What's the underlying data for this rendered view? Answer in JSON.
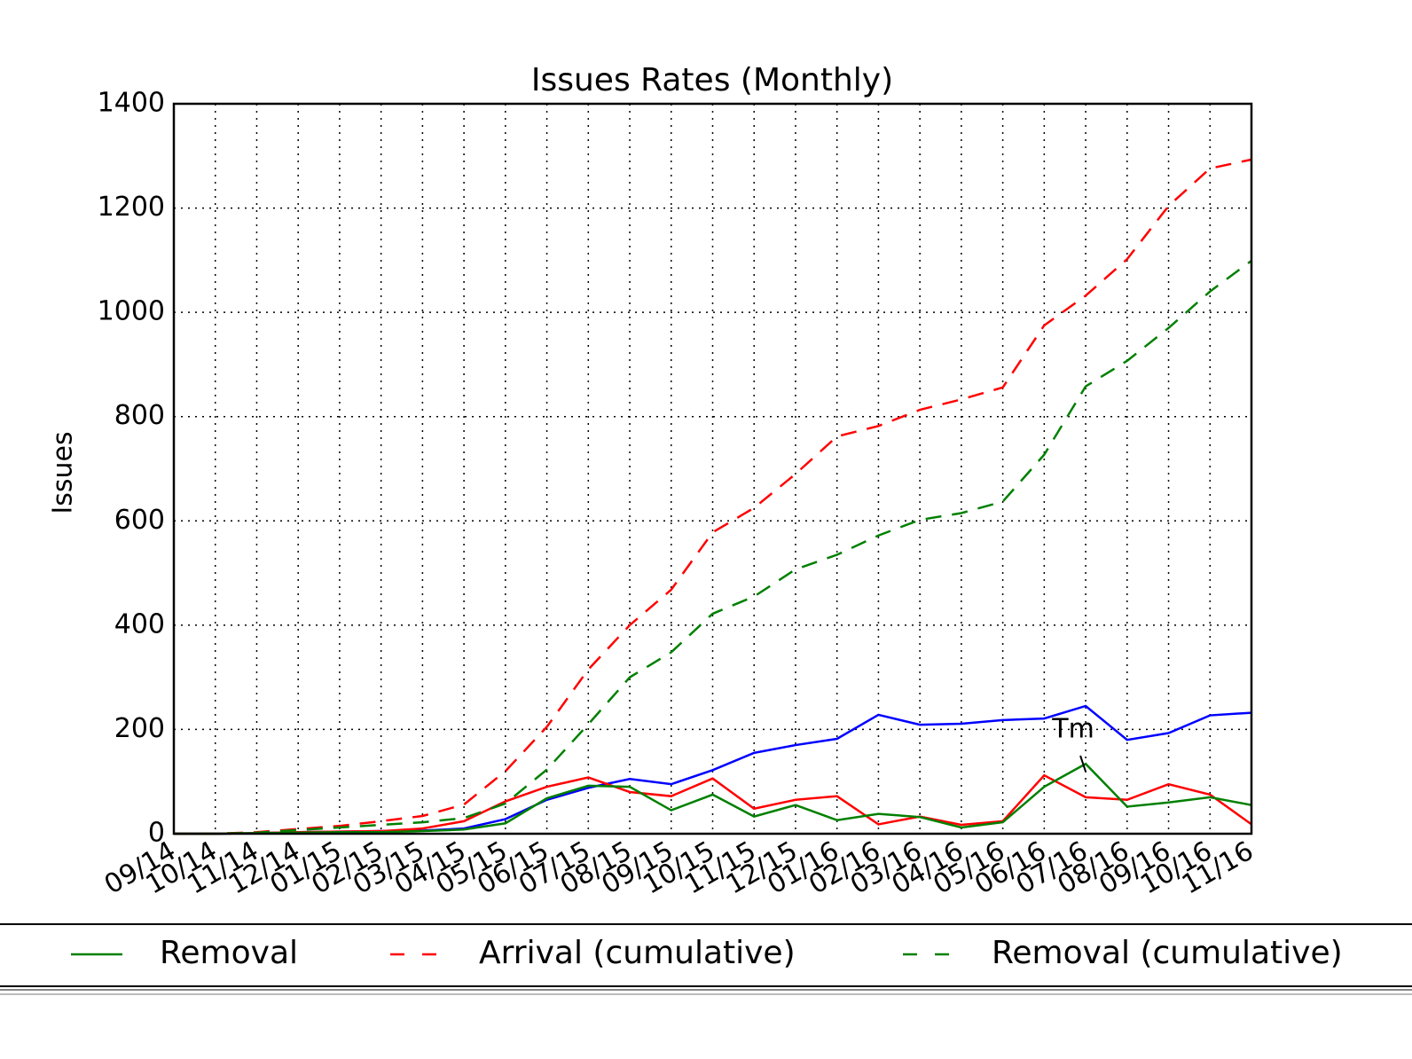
{
  "chart_data": {
    "type": "line",
    "title": "Issues Rates (Monthly)",
    "y_label": "Issues",
    "categories": [
      "09/14",
      "10/14",
      "11/14",
      "12/14",
      "01/15",
      "02/15",
      "03/15",
      "04/15",
      "05/15",
      "06/15",
      "07/15",
      "08/15",
      "09/15",
      "10/15",
      "11/15",
      "12/15",
      "01/16",
      "02/16",
      "03/16",
      "04/16",
      "05/16",
      "06/16",
      "07/16",
      "08/16",
      "09/16",
      "10/16",
      "11/16"
    ],
    "series": [
      {
        "color": "#0000ff",
        "linestyle": "solid",
        "values": [
          0,
          0,
          1,
          3,
          4,
          5,
          6,
          10,
          28,
          65,
          88,
          105,
          95,
          122,
          155,
          170,
          182,
          228,
          209,
          211,
          218,
          221,
          245,
          180,
          193,
          227,
          232
        ]
      },
      {
        "color": "#ff0000",
        "linestyle": "solid",
        "values": [
          0,
          0,
          1,
          3,
          4,
          5,
          10,
          24,
          62,
          90,
          108,
          80,
          72,
          106,
          48,
          65,
          72,
          18,
          33,
          17,
          24,
          112,
          70,
          65,
          95,
          75,
          18
        ]
      },
      {
        "name": "Removal",
        "color": "#008000",
        "linestyle": "solid",
        "values": [
          0,
          0,
          1,
          2,
          3,
          3,
          5,
          8,
          20,
          68,
          92,
          90,
          45,
          75,
          33,
          55,
          26,
          38,
          32,
          12,
          22,
          90,
          134,
          52,
          60,
          70,
          55
        ]
      },
      {
        "name": "Arrival (cumulative)",
        "color": "#ff0000",
        "linestyle": "dashed",
        "values": [
          0,
          0,
          3,
          9,
          15,
          24,
          34,
          56,
          120,
          205,
          315,
          400,
          468,
          578,
          625,
          690,
          762,
          782,
          813,
          833,
          856,
          975,
          1032,
          1102,
          1204,
          1276,
          1293
        ]
      },
      {
        "name": "Removal (cumulative)",
        "color": "#008000",
        "linestyle": "dashed",
        "values": [
          0,
          0,
          2,
          7,
          12,
          17,
          22,
          30,
          58,
          123,
          210,
          300,
          348,
          422,
          455,
          507,
          535,
          572,
          602,
          615,
          637,
          727,
          858,
          907,
          970,
          1040,
          1099
        ]
      }
    ],
    "annotation": {
      "text": "Tm",
      "category": "07/16"
    },
    "ylim": [
      0,
      1400
    ],
    "yticks": [
      0,
      200,
      400,
      600,
      800,
      1000,
      1200,
      1400
    ],
    "grid": true
  }
}
